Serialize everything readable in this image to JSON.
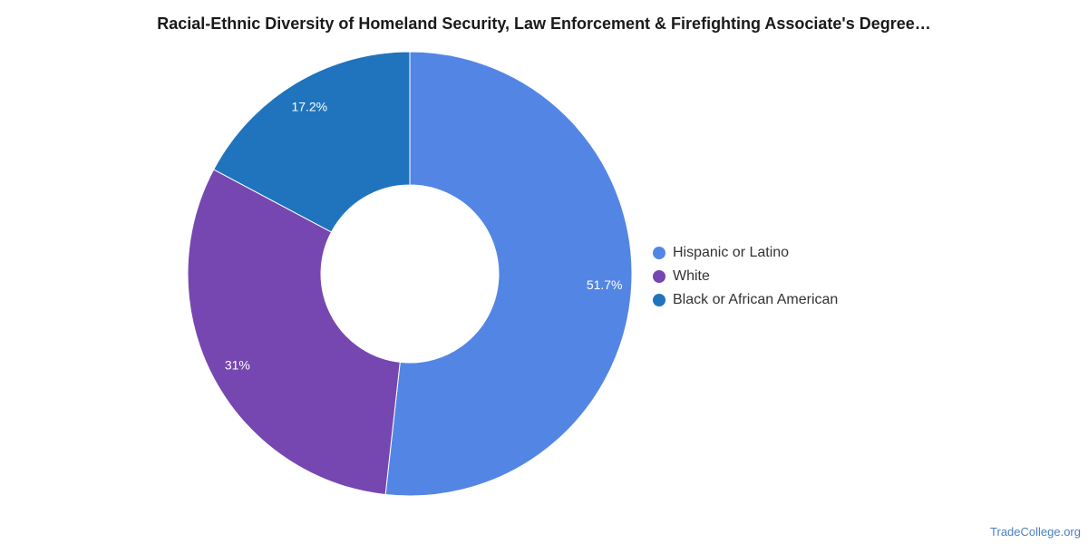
{
  "chart_data": {
    "type": "pie",
    "title": "Racial-Ethnic Diversity of Homeland Security, Law Enforcement & Firefighting Associate's Degree…",
    "categories": [
      "Hispanic or Latino",
      "White",
      "Black or African American"
    ],
    "values": [
      51.7,
      31,
      17.2
    ],
    "labels": [
      "51.7%",
      "31%",
      "17.2%"
    ],
    "colors": [
      "#5386e4",
      "#7647b0",
      "#1f74bd"
    ],
    "donut": true,
    "legend": "right"
  },
  "credit": "TradeCollege.org"
}
